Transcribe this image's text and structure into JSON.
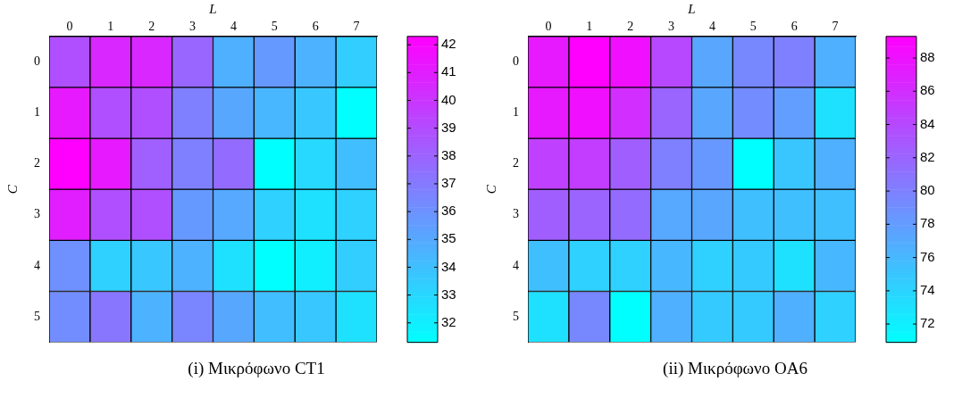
{
  "chart_data": [
    {
      "type": "heatmap",
      "xlabel": "L",
      "ylabel": "C",
      "categories": [
        "0",
        "1",
        "2",
        "3",
        "4",
        "5",
        "6",
        "7"
      ],
      "y_categories": [
        "0",
        "1",
        "2",
        "3",
        "4",
        "5"
      ],
      "cells": [
        [
          38.9,
          40.6,
          40.6,
          37.9,
          34.7,
          35.7,
          34.6,
          33.4
        ],
        [
          41.2,
          38.9,
          38.9,
          36.8,
          35.1,
          34.4,
          33.7,
          31.3
        ],
        [
          42.3,
          41.2,
          38.2,
          36.8,
          37.7,
          31.3,
          33.0,
          34.1
        ],
        [
          41.0,
          38.9,
          38.9,
          35.7,
          35.0,
          33.3,
          32.6,
          33.3
        ],
        [
          36.1,
          33.3,
          33.7,
          34.6,
          32.6,
          31.3,
          32.0,
          33.4
        ],
        [
          36.2,
          37.2,
          34.6,
          36.5,
          35.1,
          34.1,
          33.7,
          32.6
        ]
      ],
      "clim": [
        31.3,
        42.3
      ],
      "cticks": [
        32,
        33,
        34,
        35,
        36,
        37,
        38,
        39,
        40,
        41,
        42
      ],
      "annotations": [
        "(i) Μικρόφωνο CT1"
      ]
    },
    {
      "type": "heatmap",
      "xlabel": "L",
      "ylabel": "C",
      "categories": [
        "0",
        "1",
        "2",
        "3",
        "4",
        "5",
        "6",
        "7"
      ],
      "y_categories": [
        "0",
        "1",
        "2",
        "3",
        "4",
        "5"
      ],
      "cells": [
        [
          87.5,
          89.3,
          88.2,
          84.1,
          77.3,
          79.5,
          80.1,
          76.6
        ],
        [
          87.5,
          88.2,
          86.0,
          82.0,
          77.3,
          79.2,
          77.9,
          73.1
        ],
        [
          84.7,
          84.9,
          82.5,
          80.1,
          78.3,
          70.9,
          75.0,
          76.6
        ],
        [
          82.5,
          82.1,
          81.6,
          77.2,
          77.3,
          75.5,
          75.5,
          75.5
        ],
        [
          75.5,
          74.2,
          74.2,
          76.0,
          74.2,
          74.7,
          73.1,
          76.0
        ],
        [
          73.1,
          79.5,
          70.9,
          76.6,
          74.7,
          74.7,
          76.6,
          74.2
        ]
      ],
      "clim": [
        70.9,
        89.3
      ],
      "cticks": [
        72,
        74,
        76,
        78,
        80,
        82,
        84,
        86,
        88
      ],
      "annotations": [
        "(ii) Μικρόφωνο OA6"
      ]
    }
  ]
}
